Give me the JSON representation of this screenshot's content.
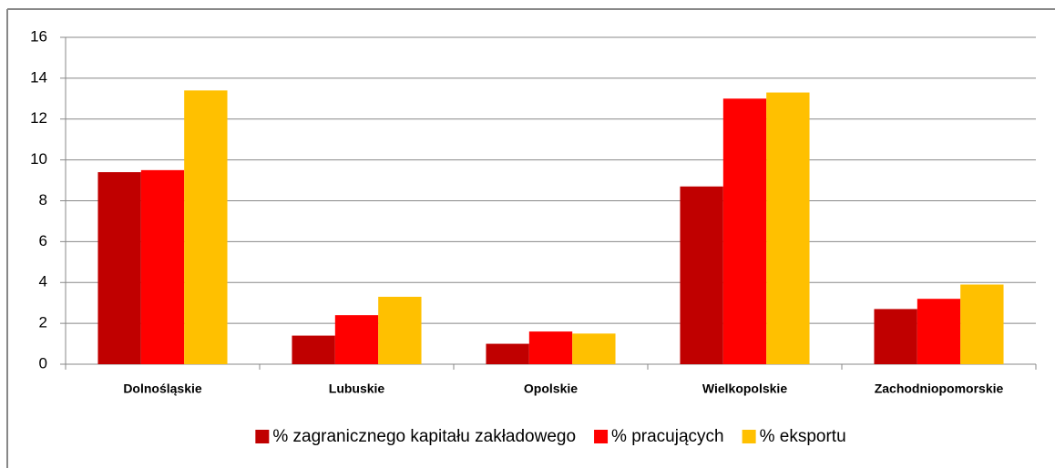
{
  "chart_data": {
    "type": "bar",
    "categories": [
      "Dolnośląskie",
      "Lubuskie",
      "Opolskie",
      "Wielkopolskie",
      "Zachodniopomorskie"
    ],
    "series": [
      {
        "name": "% zagranicznego kapitału zakładowego",
        "color": "#c00000",
        "values": [
          9.4,
          1.4,
          1.0,
          8.7,
          2.7
        ]
      },
      {
        "name": "% pracujących",
        "color": "#ff0000",
        "values": [
          9.5,
          2.4,
          1.6,
          13.0,
          3.2
        ]
      },
      {
        "name": "% eksportu",
        "color": "#ffc000",
        "values": [
          13.4,
          3.3,
          1.5,
          13.3,
          3.9
        ]
      }
    ],
    "ylim": [
      0,
      16
    ],
    "yticks": [
      0,
      2,
      4,
      6,
      8,
      10,
      12,
      14,
      16
    ],
    "grid": true,
    "legend": "bottom"
  }
}
